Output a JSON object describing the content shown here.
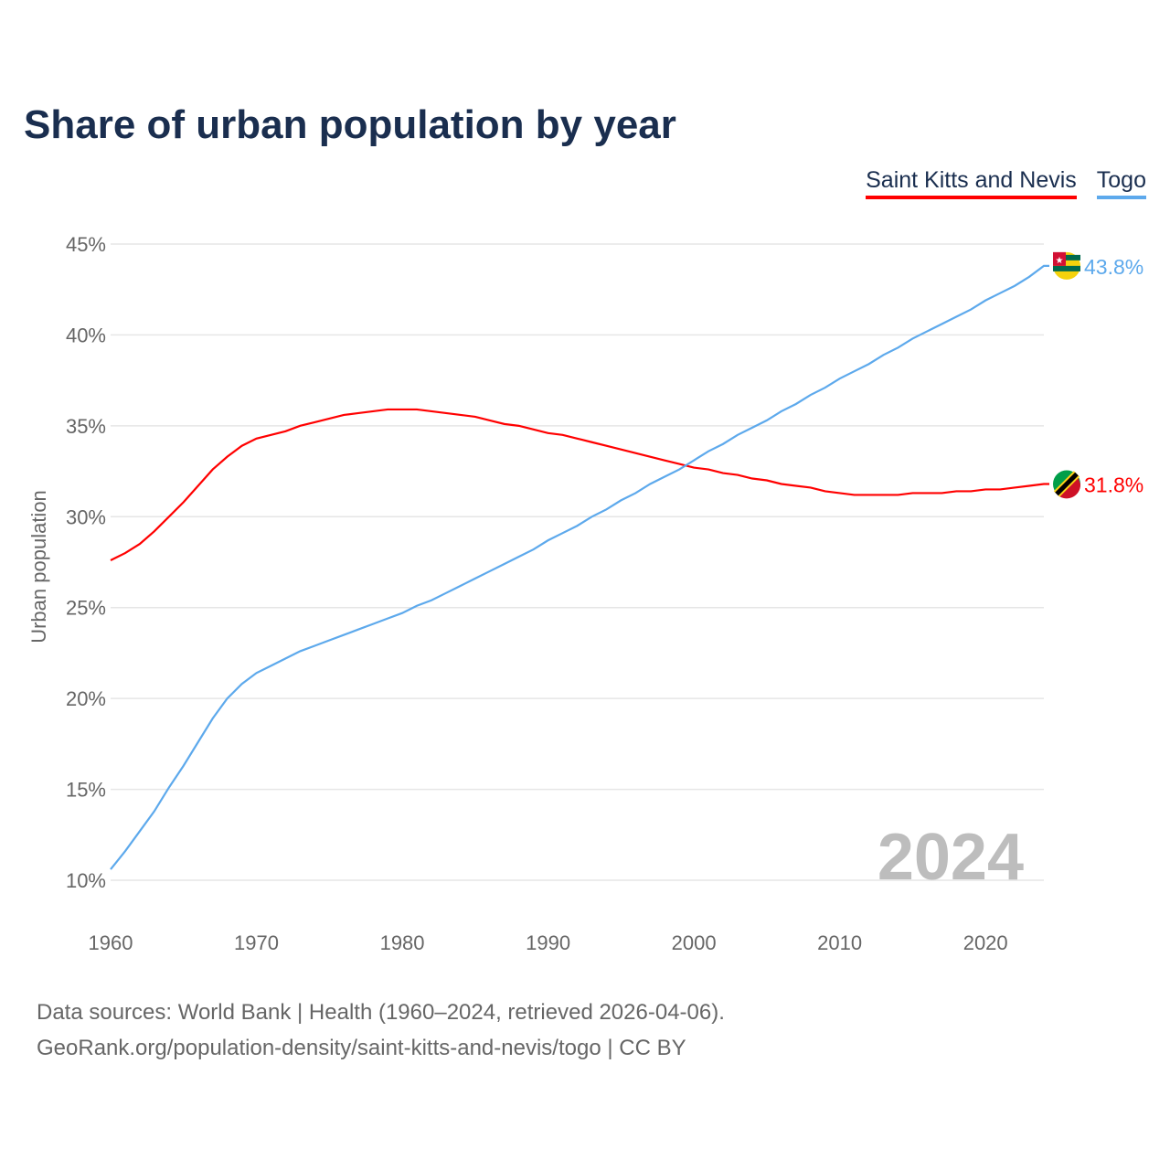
{
  "title": "Share of urban population by year",
  "watermark_year": "2024",
  "source_line1": "Data sources: World Bank | Health (1960–2024, retrieved 2026-04-06).",
  "source_line2": "GeoRank.org/population-density/saint-kitts-and-nevis/togo | CC BY",
  "chart_data": {
    "type": "line",
    "title": "Share of urban population by year",
    "xlabel": "",
    "ylabel": "Urban population",
    "xlim": [
      1960,
      2024
    ],
    "ylim": [
      10,
      45
    ],
    "x_ticks": [
      "1960",
      "1970",
      "1980",
      "1990",
      "2000",
      "2010",
      "2020"
    ],
    "y_ticks": [
      "10%",
      "15%",
      "20%",
      "25%",
      "30%",
      "35%",
      "40%",
      "45%"
    ],
    "grid": true,
    "legend_placement": "top-right",
    "x": [
      1960,
      1961,
      1962,
      1963,
      1964,
      1965,
      1966,
      1967,
      1968,
      1969,
      1970,
      1971,
      1972,
      1973,
      1974,
      1975,
      1976,
      1977,
      1978,
      1979,
      1980,
      1981,
      1982,
      1983,
      1984,
      1985,
      1986,
      1987,
      1988,
      1989,
      1990,
      1991,
      1992,
      1993,
      1994,
      1995,
      1996,
      1997,
      1998,
      1999,
      2000,
      2001,
      2002,
      2003,
      2004,
      2005,
      2006,
      2007,
      2008,
      2009,
      2010,
      2011,
      2012,
      2013,
      2014,
      2015,
      2016,
      2017,
      2018,
      2019,
      2020,
      2021,
      2022,
      2023,
      2024
    ],
    "series": [
      {
        "name": "Saint Kitts and Nevis",
        "color": "#ff0000",
        "end_label": "31.8%",
        "values": [
          27.6,
          28.0,
          28.5,
          29.2,
          30.0,
          30.8,
          31.7,
          32.6,
          33.3,
          33.9,
          34.3,
          34.5,
          34.7,
          35.0,
          35.2,
          35.4,
          35.6,
          35.7,
          35.8,
          35.9,
          35.9,
          35.9,
          35.8,
          35.7,
          35.6,
          35.5,
          35.3,
          35.1,
          35.0,
          34.8,
          34.6,
          34.5,
          34.3,
          34.1,
          33.9,
          33.7,
          33.5,
          33.3,
          33.1,
          32.9,
          32.7,
          32.6,
          32.4,
          32.3,
          32.1,
          32.0,
          31.8,
          31.7,
          31.6,
          31.4,
          31.3,
          31.2,
          31.2,
          31.2,
          31.2,
          31.3,
          31.3,
          31.3,
          31.4,
          31.4,
          31.5,
          31.5,
          31.6,
          31.7,
          31.8
        ]
      },
      {
        "name": "Togo",
        "color": "#5da9ec",
        "end_label": "43.8%",
        "values": [
          10.6,
          11.6,
          12.7,
          13.8,
          15.1,
          16.3,
          17.6,
          18.9,
          20.0,
          20.8,
          21.4,
          21.8,
          22.2,
          22.6,
          22.9,
          23.2,
          23.5,
          23.8,
          24.1,
          24.4,
          24.7,
          25.1,
          25.4,
          25.8,
          26.2,
          26.6,
          27.0,
          27.4,
          27.8,
          28.2,
          28.7,
          29.1,
          29.5,
          30.0,
          30.4,
          30.9,
          31.3,
          31.8,
          32.2,
          32.6,
          33.1,
          33.6,
          34.0,
          34.5,
          34.9,
          35.3,
          35.8,
          36.2,
          36.7,
          37.1,
          37.6,
          38.0,
          38.4,
          38.9,
          39.3,
          39.8,
          40.2,
          40.6,
          41.0,
          41.4,
          41.9,
          42.3,
          42.7,
          43.2,
          43.8
        ]
      }
    ]
  }
}
